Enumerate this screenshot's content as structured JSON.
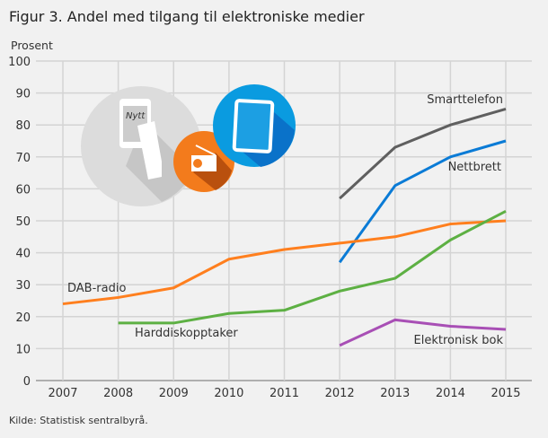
{
  "title": "Figur 3. Andel med tilgang til elektroniske medier",
  "source": "Kilde: Statistisk sentralbyrå.",
  "illustration": {
    "phone_text": "Nytt",
    "icons": [
      "smartphone-in-hand-icon",
      "radio-icon",
      "tablet-icon"
    ]
  },
  "chart_data": {
    "type": "line",
    "title": "Figur 3. Andel med tilgang til elektroniske medier",
    "ylabel": "Prosent",
    "xlabel": "",
    "ylim": [
      0,
      100
    ],
    "yticks": [
      0,
      10,
      20,
      30,
      40,
      50,
      60,
      70,
      80,
      90,
      100
    ],
    "x": [
      2007,
      2008,
      2009,
      2010,
      2011,
      2012,
      2013,
      2014,
      2015
    ],
    "grid": true,
    "series": [
      {
        "name": "Smarttelefon",
        "color": "#5f5f5f",
        "values": [
          null,
          null,
          null,
          null,
          null,
          57,
          73,
          80,
          85
        ]
      },
      {
        "name": "Nettbrett",
        "color": "#0a7bd6",
        "values": [
          null,
          null,
          null,
          null,
          null,
          37,
          61,
          70,
          75
        ]
      },
      {
        "name": "DAB-radio",
        "color": "#ff7f1e",
        "values": [
          24,
          26,
          29,
          38,
          41,
          43,
          45,
          49,
          50
        ]
      },
      {
        "name": "Harddiskopptaker",
        "color": "#5db043",
        "values": [
          null,
          18,
          18,
          21,
          22,
          28,
          32,
          44,
          53
        ]
      },
      {
        "name": "Elektronisk bok",
        "color": "#a84fb5",
        "values": [
          null,
          null,
          null,
          null,
          null,
          11,
          19,
          17,
          16
        ]
      }
    ]
  }
}
